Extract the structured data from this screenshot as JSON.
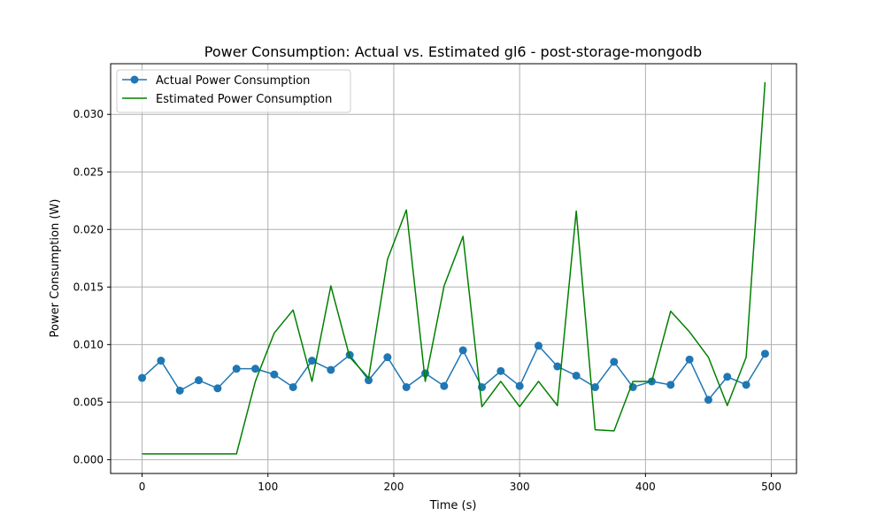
{
  "chart_data": {
    "type": "line",
    "title": "Power Consumption: Actual vs. Estimated gl6 - post-storage-mongodb",
    "xlabel": "Time (s)",
    "ylabel": "Power Consumption (W)",
    "xlim": [
      -25,
      520
    ],
    "ylim": [
      -0.0012,
      0.0344
    ],
    "xticks": [
      0,
      100,
      200,
      300,
      400,
      500
    ],
    "yticks": [
      0.0,
      0.005,
      0.01,
      0.015,
      0.02,
      0.025,
      0.03
    ],
    "ytick_labels": [
      "0.000",
      "0.005",
      "0.010",
      "0.015",
      "0.020",
      "0.025",
      "0.030"
    ],
    "grid": true,
    "legend_position": "top-left",
    "series": [
      {
        "name": "Actual Power Consumption",
        "color": "#1f77b4",
        "marker": "circle",
        "x": [
          0,
          15,
          30,
          45,
          60,
          75,
          90,
          105,
          120,
          135,
          150,
          165,
          180,
          195,
          210,
          225,
          240,
          255,
          270,
          285,
          300,
          315,
          330,
          345,
          360,
          375,
          390,
          405,
          420,
          435,
          450,
          465,
          480,
          495
        ],
        "y": [
          0.0071,
          0.0086,
          0.006,
          0.0069,
          0.0062,
          0.0079,
          0.0079,
          0.0074,
          0.0063,
          0.0086,
          0.0078,
          0.0091,
          0.0069,
          0.0089,
          0.0063,
          0.0075,
          0.0064,
          0.0095,
          0.0063,
          0.0077,
          0.0064,
          0.0099,
          0.0081,
          0.0073,
          0.0063,
          0.0085,
          0.0063,
          0.0068,
          0.0065,
          0.0087,
          0.0052,
          0.0072,
          0.0065,
          0.0092
        ]
      },
      {
        "name": "Estimated Power Consumption",
        "color": "#008000",
        "marker": "none",
        "x": [
          0,
          15,
          30,
          45,
          60,
          75,
          90,
          105,
          120,
          135,
          150,
          165,
          180,
          195,
          210,
          225,
          240,
          255,
          270,
          285,
          300,
          315,
          330,
          345,
          360,
          375,
          390,
          405,
          420,
          435,
          450,
          465,
          480,
          495
        ],
        "y": [
          0.0005,
          0.0005,
          0.0005,
          0.0005,
          0.0005,
          0.0005,
          0.0068,
          0.011,
          0.013,
          0.0068,
          0.0151,
          0.0089,
          0.0071,
          0.0174,
          0.0217,
          0.0068,
          0.0151,
          0.0194,
          0.0046,
          0.0068,
          0.0046,
          0.0068,
          0.0047,
          0.0216,
          0.0026,
          0.0025,
          0.0068,
          0.0068,
          0.0129,
          0.0111,
          0.0089,
          0.0047,
          0.0089,
          0.0328
        ]
      }
    ]
  }
}
